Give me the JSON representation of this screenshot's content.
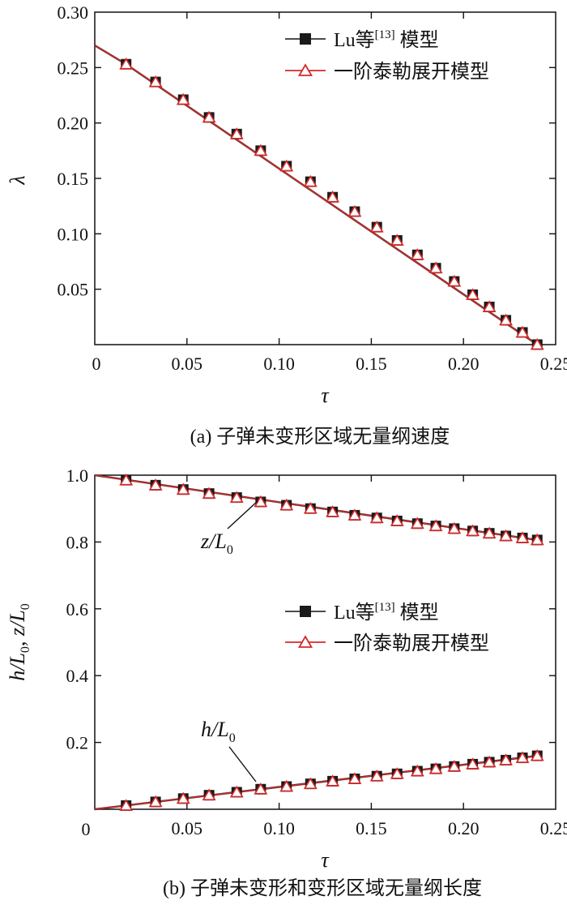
{
  "legend": {
    "lu_label": "Lu等",
    "lu_ref": "[13]",
    "lu_suffix": " 模型",
    "taylor_label": "一阶泰勒展开模型"
  },
  "colors": {
    "lu_marker": "#1a1a1a",
    "taylor_line": "#d42a2a",
    "axis": "#111111"
  },
  "chart_data": [
    {
      "id": "a",
      "type": "line",
      "caption": "(a) 子弹未变形区域无量纲速度",
      "xlabel": "τ",
      "ylabel": "λ",
      "xlim": [
        0,
        0.25
      ],
      "ylim": [
        0,
        0.3
      ],
      "xticks": [
        "0",
        "0.05",
        "0.10",
        "0.15",
        "0.20",
        "0.25"
      ],
      "xtick_values": [
        0,
        0.05,
        0.1,
        0.15,
        0.2,
        0.25
      ],
      "yticks": [
        "0.05",
        "0.10",
        "0.15",
        "0.20",
        "0.25",
        "0.30"
      ],
      "ytick_values": [
        0.05,
        0.1,
        0.15,
        0.2,
        0.25,
        0.3
      ],
      "legend_position": "top-right",
      "line": {
        "x": [
          0,
          0.017,
          0.24
        ],
        "y": [
          0.27,
          0.253,
          0.0
        ]
      },
      "series": [
        {
          "name": "Lu等[13] 模型",
          "marker": "square",
          "x": [
            0.017,
            0.033,
            0.048,
            0.062,
            0.077,
            0.09,
            0.104,
            0.117,
            0.129,
            0.141,
            0.153,
            0.164,
            0.175,
            0.185,
            0.195,
            0.205,
            0.214,
            0.223,
            0.232,
            0.24
          ],
          "y": [
            0.253,
            0.237,
            0.221,
            0.205,
            0.19,
            0.175,
            0.161,
            0.147,
            0.133,
            0.12,
            0.106,
            0.094,
            0.081,
            0.069,
            0.057,
            0.045,
            0.034,
            0.022,
            0.011,
            0.0
          ]
        },
        {
          "name": "一阶泰勒展开模型",
          "marker": "triangle",
          "x": [
            0.017,
            0.033,
            0.048,
            0.062,
            0.077,
            0.09,
            0.104,
            0.117,
            0.129,
            0.141,
            0.153,
            0.164,
            0.175,
            0.185,
            0.195,
            0.205,
            0.214,
            0.223,
            0.232,
            0.24
          ],
          "y": [
            0.253,
            0.237,
            0.221,
            0.205,
            0.19,
            0.175,
            0.161,
            0.147,
            0.133,
            0.12,
            0.106,
            0.094,
            0.081,
            0.069,
            0.057,
            0.045,
            0.034,
            0.022,
            0.011,
            0.0
          ]
        }
      ]
    },
    {
      "id": "b",
      "type": "line",
      "caption": "(b) 子弹未变形和变形区域无量纲长度",
      "xlabel": "τ",
      "ylabel": "h/L0, z/L0",
      "xlim": [
        0,
        0.25
      ],
      "ylim": [
        0,
        1.0
      ],
      "xticks": [
        "0",
        "0.05",
        "0.10",
        "0.15",
        "0.20",
        "0.25"
      ],
      "xtick_values": [
        0,
        0.05,
        0.1,
        0.15,
        0.2,
        0.25
      ],
      "yticks": [
        "0.2",
        "0.4",
        "0.6",
        "0.8",
        "1.0"
      ],
      "ytick_values": [
        0.2,
        0.4,
        0.6,
        0.8,
        1.0
      ],
      "legend_position": "center-right",
      "annotations": [
        {
          "text": "z/L",
          "sub": "0",
          "at_x": 0.09,
          "at_y": 0.92
        },
        {
          "text": "h/L",
          "sub": "0",
          "at_x": 0.09,
          "at_y": 0.058
        }
      ],
      "lines": [
        {
          "x": [
            0,
            0.24
          ],
          "y": [
            1.0,
            0.806
          ]
        },
        {
          "x": [
            0,
            0.24
          ],
          "y": [
            0.0,
            0.16
          ]
        }
      ],
      "series": [
        {
          "name": "z/L0 (Lu等[13] 模型)",
          "marker": "square",
          "x": [
            0.017,
            0.033,
            0.048,
            0.062,
            0.077,
            0.09,
            0.104,
            0.117,
            0.129,
            0.141,
            0.153,
            0.164,
            0.175,
            0.185,
            0.195,
            0.205,
            0.214,
            0.223,
            0.232,
            0.24
          ],
          "y": [
            0.985,
            0.97,
            0.957,
            0.945,
            0.933,
            0.92,
            0.91,
            0.9,
            0.89,
            0.88,
            0.872,
            0.863,
            0.855,
            0.848,
            0.84,
            0.833,
            0.826,
            0.818,
            0.812,
            0.806
          ]
        },
        {
          "name": "z/L0 (一阶泰勒展开模型)",
          "marker": "triangle",
          "x": [
            0.017,
            0.033,
            0.048,
            0.062,
            0.077,
            0.09,
            0.104,
            0.117,
            0.129,
            0.141,
            0.153,
            0.164,
            0.175,
            0.185,
            0.195,
            0.205,
            0.214,
            0.223,
            0.232,
            0.24
          ],
          "y": [
            0.985,
            0.97,
            0.957,
            0.945,
            0.933,
            0.92,
            0.91,
            0.9,
            0.89,
            0.88,
            0.872,
            0.863,
            0.855,
            0.848,
            0.84,
            0.833,
            0.826,
            0.818,
            0.812,
            0.806
          ]
        },
        {
          "name": "h/L0 (Lu等[13] 模型)",
          "marker": "square",
          "x": [
            0.017,
            0.033,
            0.048,
            0.062,
            0.077,
            0.09,
            0.104,
            0.117,
            0.129,
            0.141,
            0.153,
            0.164,
            0.175,
            0.185,
            0.195,
            0.205,
            0.214,
            0.223,
            0.232,
            0.24
          ],
          "y": [
            0.011,
            0.022,
            0.032,
            0.042,
            0.051,
            0.06,
            0.068,
            0.076,
            0.084,
            0.091,
            0.099,
            0.106,
            0.114,
            0.121,
            0.128,
            0.135,
            0.141,
            0.147,
            0.154,
            0.16
          ]
        },
        {
          "name": "h/L0 (一阶泰勒展开模型)",
          "marker": "triangle",
          "x": [
            0.017,
            0.033,
            0.048,
            0.062,
            0.077,
            0.09,
            0.104,
            0.117,
            0.129,
            0.141,
            0.153,
            0.164,
            0.175,
            0.185,
            0.195,
            0.205,
            0.214,
            0.223,
            0.232,
            0.24
          ],
          "y": [
            0.011,
            0.022,
            0.032,
            0.042,
            0.051,
            0.06,
            0.068,
            0.076,
            0.084,
            0.091,
            0.099,
            0.106,
            0.114,
            0.121,
            0.128,
            0.135,
            0.141,
            0.147,
            0.154,
            0.16
          ]
        }
      ]
    }
  ]
}
